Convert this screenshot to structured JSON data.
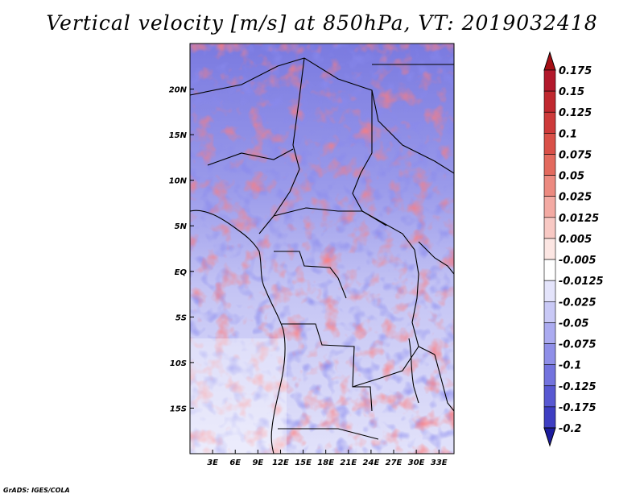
{
  "title": "Vertical velocity [m/s] at 850hPa, VT: 2019032418",
  "credit": "GrADS: IGES/COLA",
  "map": {
    "variable": "Vertical velocity",
    "units": "m/s",
    "level": "850hPa",
    "valid_time": "2019032418",
    "lon_range": [
      0,
      35
    ],
    "lat_range": [
      -20,
      25
    ],
    "lon_ticks": [
      {
        "value": 3,
        "label": "3E"
      },
      {
        "value": 6,
        "label": "6E"
      },
      {
        "value": 9,
        "label": "9E"
      },
      {
        "value": 12,
        "label": "12E"
      },
      {
        "value": 15,
        "label": "15E"
      },
      {
        "value": 18,
        "label": "18E"
      },
      {
        "value": 21,
        "label": "21E"
      },
      {
        "value": 24,
        "label": "24E"
      },
      {
        "value": 27,
        "label": "27E"
      },
      {
        "value": 30,
        "label": "30E"
      },
      {
        "value": 33,
        "label": "33E"
      }
    ],
    "lat_ticks": [
      {
        "value": 20,
        "label": "20N"
      },
      {
        "value": 15,
        "label": "15N"
      },
      {
        "value": 10,
        "label": "10N"
      },
      {
        "value": 5,
        "label": "5N"
      },
      {
        "value": 0,
        "label": "EQ"
      },
      {
        "value": -5,
        "label": "5S"
      },
      {
        "value": -10,
        "label": "10S"
      },
      {
        "value": -15,
        "label": "15S"
      }
    ]
  },
  "colorbar": {
    "levels": [
      {
        "label": "0.175",
        "color": "#b2182b"
      },
      {
        "label": "0.15",
        "color": "#c0282f"
      },
      {
        "label": "0.125",
        "color": "#cd3a3a"
      },
      {
        "label": "0.1",
        "color": "#d95048"
      },
      {
        "label": "0.075",
        "color": "#e36a5e"
      },
      {
        "label": "0.05",
        "color": "#ec8a80"
      },
      {
        "label": "0.025",
        "color": "#f3aaa3"
      },
      {
        "label": "0.0125",
        "color": "#f8c9c4"
      },
      {
        "label": "0.005",
        "color": "#fce6e3"
      },
      {
        "label": "-0.005",
        "color": "#ffffff"
      },
      {
        "label": "-0.0125",
        "color": "#e4e4fb"
      },
      {
        "label": "-0.025",
        "color": "#c9c9f6"
      },
      {
        "label": "-0.05",
        "color": "#ababf0"
      },
      {
        "label": "-0.075",
        "color": "#8f8fe8"
      },
      {
        "label": "-0.1",
        "color": "#7373de"
      },
      {
        "label": "-0.125",
        "color": "#5858d2"
      },
      {
        "label": "-0.175",
        "color": "#3e3ec2"
      },
      {
        "label": "-0.2",
        "color": "#2626b0"
      }
    ],
    "top_color": "#a50f15",
    "bottom_color": "#1c1c9e"
  }
}
